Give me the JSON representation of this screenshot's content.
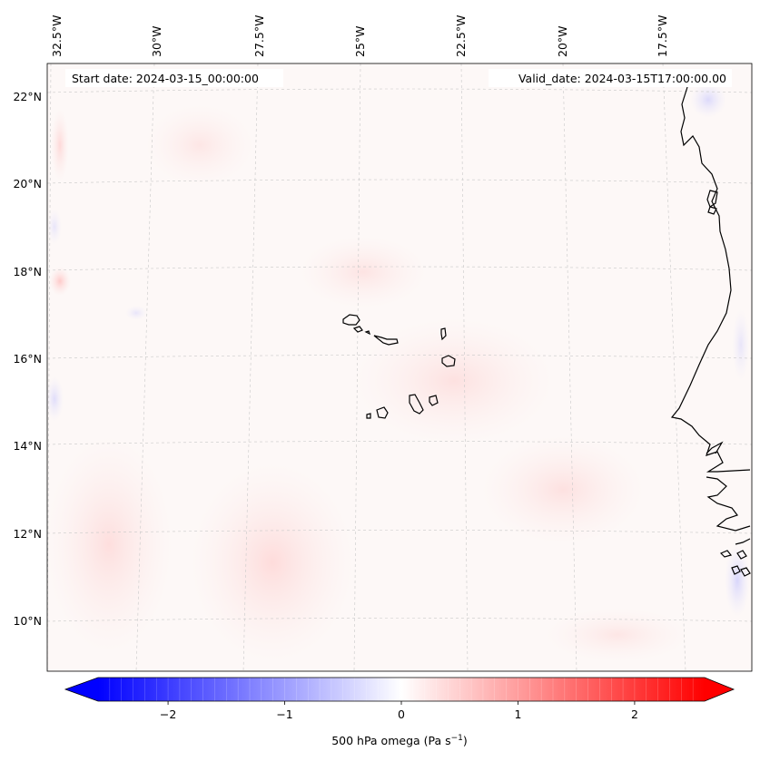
{
  "map": {
    "start_date_text": "Start date: 2024-03-15_00:00:00",
    "valid_date_text": "Valid_date: 2024-03-15T17:00:00.00",
    "lon_labels": [
      "32.5°W",
      "30°W",
      "27.5°W",
      "25°W",
      "22.5°W",
      "20°W",
      "17.5°W"
    ],
    "lat_labels": [
      "22°N",
      "20°N",
      "18°N",
      "16°N",
      "14°N",
      "12°N",
      "10°N"
    ],
    "extent": {
      "lon_min": -33.0,
      "lon_max": -15.4,
      "lat_min": 8.9,
      "lat_max": 22.7
    },
    "field_colors": {
      "neutral": "#fdfaf9",
      "positive": "#ff0000",
      "negative": "#0000ff"
    }
  },
  "colorbar": {
    "label_main": "500 hPa omega (Pa s",
    "label_sup": "−1",
    "label_end": ")",
    "ticks": [
      "−2",
      "−1",
      "0",
      "1",
      "2"
    ],
    "tick_values": [
      -2,
      -1,
      0,
      1,
      2
    ],
    "range": [
      -2.6,
      2.6
    ],
    "colors": {
      "min": "#0000ff",
      "mid": "#ffffff",
      "max": "#ff0000"
    }
  }
}
